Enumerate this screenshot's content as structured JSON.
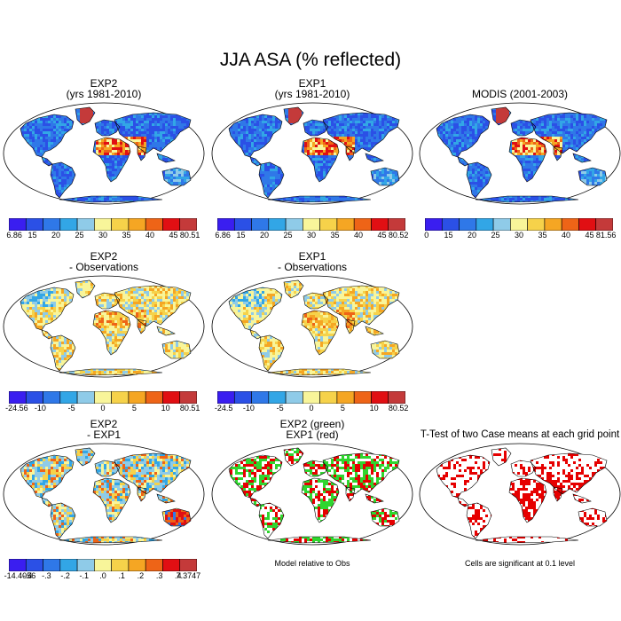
{
  "title": "JJA ASA (% reflected)",
  "panels": [
    {
      "id": "p1",
      "title1": "EXP2",
      "title2": "(yrs 1981-2010)",
      "scheme": "asa",
      "colorbar": {
        "labels": [
          "6.86",
          "15",
          "20",
          "25",
          "30",
          "35",
          "40",
          "45",
          "80.51"
        ]
      }
    },
    {
      "id": "p2",
      "title1": "EXP1",
      "title2": "(yrs 1981-2010)",
      "scheme": "asa",
      "colorbar": {
        "labels": [
          "6.86",
          "15",
          "20",
          "25",
          "30",
          "35",
          "40",
          "45",
          "80.52"
        ]
      }
    },
    {
      "id": "p3",
      "title1": "",
      "title2": "MODIS (2001-2003)",
      "scheme": "asa",
      "colorbar": {
        "labels": [
          "0",
          "15",
          "20",
          "25",
          "30",
          "35",
          "40",
          "45",
          "81.56"
        ]
      }
    },
    {
      "id": "p4",
      "title1": "EXP2",
      "title2": "- Observations",
      "scheme": "diff",
      "colorbar": {
        "labels": [
          "-24.56",
          "-10",
          "-5",
          "0",
          "5",
          "10",
          "80.51"
        ]
      }
    },
    {
      "id": "p5",
      "title1": "EXP1",
      "title2": "- Observations",
      "scheme": "diff",
      "colorbar": {
        "labels": [
          "-24.5",
          "-10",
          "-5",
          "0",
          "5",
          "10",
          "80.52"
        ]
      }
    },
    {
      "id": "p6",
      "title1": "EXP2",
      "title2": "- EXP1",
      "scheme": "delta",
      "colorbar": {
        "labels": [
          "-14.4056",
          "-.4",
          "-.3",
          "-.2",
          "-.1",
          ".0",
          ".1",
          ".2",
          ".3",
          ".4",
          "7.3747"
        ]
      }
    },
    {
      "id": "p7",
      "title1": "EXP2 (green)",
      "title2": "EXP1 (red)",
      "scheme": "greenred",
      "note": "Model relative to Obs"
    },
    {
      "id": "p8",
      "title1": "",
      "title2": "T-Test of two Case means at each grid point",
      "scheme": "ttest",
      "note": "Cells are significant at 0.1 level"
    }
  ],
  "colors": {
    "asa": [
      "#3a1ef0",
      "#2b50e6",
      "#2f78e8",
      "#32a6e6",
      "#8fcbe8",
      "#f8f59a",
      "#f6d24a",
      "#f5a623",
      "#ee6417",
      "#e10f13",
      "#c43a3a"
    ],
    "diff": [
      "#3a1ef0",
      "#2b50e6",
      "#2f78e8",
      "#32a6e6",
      "#8fcbe8",
      "#f8f59a",
      "#f6d24a",
      "#f5a623",
      "#ee6417",
      "#e10f13",
      "#c43a3a"
    ],
    "delta": [
      "#3a1ef0",
      "#2b50e6",
      "#2f78e8",
      "#32a6e6",
      "#8fcbe8",
      "#f8f59a",
      "#f6d24a",
      "#f5a623",
      "#ee6417",
      "#e10f13",
      "#c43a3a"
    ],
    "ocean": "#ffffff",
    "green": "#2fd62f",
    "red": "#e60000"
  }
}
